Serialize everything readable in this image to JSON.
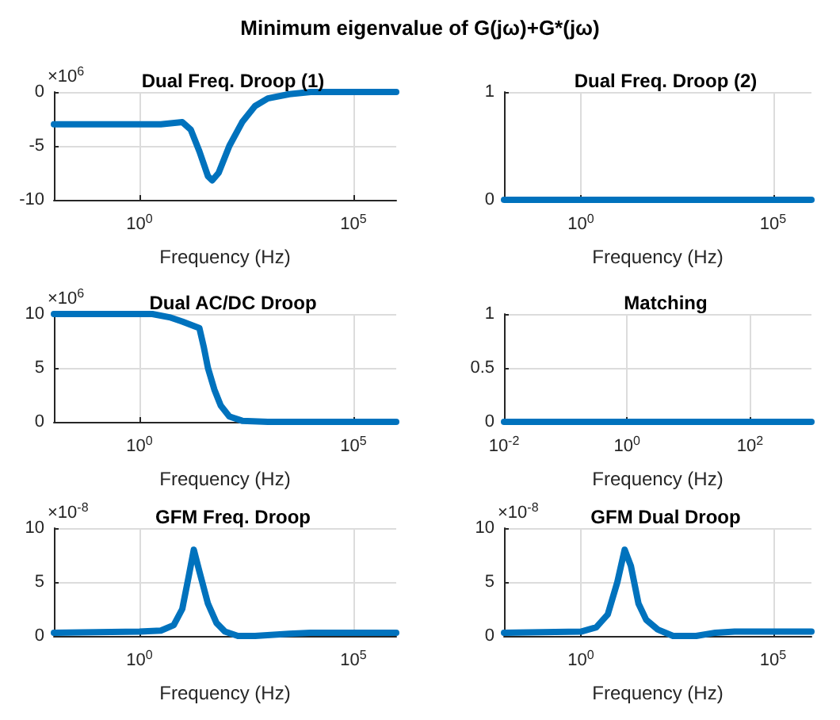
{
  "chart_data": [
    {
      "type": "other",
      "title": "Minimum eigenvalue of G(jω)+G*(jω)"
    },
    {
      "type": "line",
      "title": "Dual Freq. Droop (1)",
      "xlabel": "Frequency (Hz)",
      "annotations": [
        "×10$^{6}$"
      ],
      "log": "x",
      "grid": true,
      "xlim": [
        0.01,
        1000000
      ],
      "xticks": [
        {
          "value": 1,
          "label": "10$^{0}$"
        },
        {
          "value": 100000,
          "label": "10$^{5}$"
        }
      ],
      "ylim": [
        -10,
        0
      ],
      "yticks": [
        -10,
        -5,
        0
      ],
      "series": [
        {
          "color": "#0072bd",
          "x": [
            0.01,
            0.1,
            1,
            3.16,
            10,
            15.8,
            25.1,
            39.8,
            50.1,
            70.8,
            126,
            251,
            501,
            1000,
            3162,
            10000,
            100000,
            1000000
          ],
          "values": [
            -3,
            -3,
            -3,
            -3,
            -2.8,
            -3.5,
            -5.5,
            -7.8,
            -8.2,
            -7.5,
            -5,
            -2.8,
            -1.3,
            -0.6,
            -0.2,
            0,
            0,
            0
          ]
        }
      ]
    },
    {
      "type": "line",
      "title": "Dual Freq. Droop (2)",
      "xlabel": "Frequency (Hz)",
      "log": "x",
      "grid": true,
      "xlim": [
        0.01,
        1000000
      ],
      "xticks": [
        {
          "value": 1,
          "label": "10$^{0}$"
        },
        {
          "value": 100000,
          "label": "10$^{5}$"
        }
      ],
      "ylim": [
        0,
        1
      ],
      "yticks": [
        0,
        1
      ],
      "series": [
        {
          "color": "#0072bd",
          "x": [
            0.01,
            1000000
          ],
          "values": [
            0,
            0
          ]
        }
      ]
    },
    {
      "type": "line",
      "title": "Dual AC/DC Droop",
      "xlabel": "Frequency (Hz)",
      "annotations": [
        "×10$^{6}$"
      ],
      "log": "x",
      "grid": true,
      "xlim": [
        0.01,
        1000000
      ],
      "xticks": [
        {
          "value": 1,
          "label": "10$^{0}$"
        },
        {
          "value": 100000,
          "label": "10$^{5}$"
        }
      ],
      "ylim": [
        0,
        10
      ],
      "yticks": [
        0,
        5,
        10
      ],
      "series": [
        {
          "color": "#0072bd",
          "x": [
            0.01,
            0.1,
            1,
            2,
            5,
            10,
            25.1,
            31.6,
            39.8,
            56.2,
            79.4,
            126,
            251,
            1000,
            1000000
          ],
          "values": [
            10,
            10,
            10,
            10,
            9.7,
            9.3,
            8.7,
            7,
            5,
            3,
            1.5,
            0.5,
            0.1,
            0,
            0
          ]
        }
      ]
    },
    {
      "type": "line",
      "title": "Matching",
      "xlabel": "Frequency (Hz)",
      "log": "x",
      "grid": true,
      "xlim": [
        0.01,
        1000
      ],
      "xticks": [
        {
          "value": 0.01,
          "label": "10$^{-2}$"
        },
        {
          "value": 1,
          "label": "10$^{0}$"
        },
        {
          "value": 100,
          "label": "10$^{2}$"
        }
      ],
      "ylim": [
        0,
        1
      ],
      "yticks": [
        0,
        0.5,
        1
      ],
      "series": [
        {
          "color": "#0072bd",
          "x": [
            0.01,
            1000
          ],
          "values": [
            0,
            0
          ]
        }
      ]
    },
    {
      "type": "line",
      "title": "GFM Freq. Droop",
      "xlabel": "Frequency (Hz)",
      "annotations": [
        "×10$^{-8}$"
      ],
      "log": "x",
      "grid": true,
      "xlim": [
        0.01,
        1000000
      ],
      "xticks": [
        {
          "value": 1,
          "label": "10$^{0}$"
        },
        {
          "value": 100000,
          "label": "10$^{5}$"
        }
      ],
      "ylim": [
        0,
        10
      ],
      "yticks": [
        0,
        5,
        10
      ],
      "series": [
        {
          "color": "#0072bd",
          "x": [
            0.01,
            1,
            3.16,
            6.31,
            10,
            14.1,
            18.6,
            25.1,
            39.8,
            63.1,
            100,
            200,
            501,
            3162,
            10000,
            1000000
          ],
          "values": [
            0.3,
            0.4,
            0.5,
            1,
            2.5,
            5.5,
            8,
            6,
            3,
            1.2,
            0.4,
            0,
            0,
            0.2,
            0.3,
            0.3
          ]
        }
      ]
    },
    {
      "type": "line",
      "title": "GFM Dual Droop",
      "xlabel": "Frequency (Hz)",
      "annotations": [
        "×10$^{-8}$"
      ],
      "log": "x",
      "grid": true,
      "xlim": [
        0.01,
        1000000
      ],
      "xticks": [
        {
          "value": 1,
          "label": "10$^{0}$"
        },
        {
          "value": 100000,
          "label": "10$^{5}$"
        }
      ],
      "ylim": [
        0,
        10
      ],
      "yticks": [
        0,
        5,
        10
      ],
      "series": [
        {
          "color": "#0072bd",
          "x": [
            0.01,
            1,
            2.51,
            5.01,
            8.91,
            13.8,
            20,
            31.6,
            50.1,
            100,
            251,
            1000,
            3162,
            10000,
            1000000
          ],
          "values": [
            0.3,
            0.4,
            0.8,
            2,
            5,
            8,
            6.5,
            3,
            1.5,
            0.6,
            0,
            0,
            0.3,
            0.4,
            0.4
          ]
        }
      ]
    }
  ]
}
